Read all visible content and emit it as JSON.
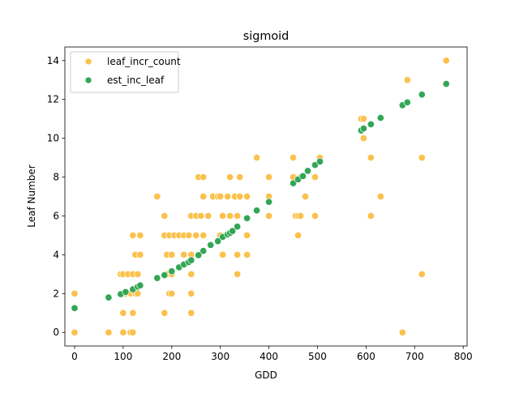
{
  "chart_data": {
    "type": "scatter",
    "title": "sigmoid",
    "xlabel": "GDD",
    "ylabel": "Leaf Number",
    "xlim": [
      -20,
      808
    ],
    "ylim": [
      -0.7,
      14.7
    ],
    "xticks": [
      0,
      100,
      200,
      300,
      400,
      500,
      600,
      700,
      800
    ],
    "yticks": [
      0,
      2,
      4,
      6,
      8,
      10,
      12,
      14
    ],
    "grid": false,
    "legend_position": "top-left",
    "series": [
      {
        "name": "leaf_incr_count",
        "color": "#fbc14c",
        "points": [
          [
            0,
            0
          ],
          [
            0,
            2
          ],
          [
            70,
            0
          ],
          [
            95,
            3
          ],
          [
            100,
            0
          ],
          [
            100,
            1
          ],
          [
            100,
            3
          ],
          [
            105,
            2
          ],
          [
            110,
            3
          ],
          [
            115,
            2
          ],
          [
            115,
            0
          ],
          [
            120,
            5
          ],
          [
            120,
            3
          ],
          [
            120,
            1
          ],
          [
            120,
            0
          ],
          [
            125,
            2
          ],
          [
            125,
            4
          ],
          [
            130,
            3
          ],
          [
            130,
            2
          ],
          [
            135,
            4
          ],
          [
            135,
            5
          ],
          [
            170,
            7
          ],
          [
            185,
            6
          ],
          [
            185,
            1
          ],
          [
            185,
            5
          ],
          [
            190,
            4
          ],
          [
            190,
            3
          ],
          [
            195,
            5
          ],
          [
            195,
            2
          ],
          [
            200,
            3
          ],
          [
            200,
            4
          ],
          [
            200,
            2
          ],
          [
            205,
            5
          ],
          [
            215,
            5
          ],
          [
            225,
            5
          ],
          [
            225,
            4
          ],
          [
            235,
            5
          ],
          [
            240,
            6
          ],
          [
            240,
            4
          ],
          [
            240,
            3
          ],
          [
            240,
            2
          ],
          [
            240,
            1
          ],
          [
            250,
            6
          ],
          [
            250,
            5
          ],
          [
            255,
            8
          ],
          [
            260,
            6
          ],
          [
            265,
            8
          ],
          [
            265,
            5
          ],
          [
            265,
            7
          ],
          [
            275,
            6
          ],
          [
            285,
            7
          ],
          [
            295,
            7
          ],
          [
            300,
            7
          ],
          [
            300,
            5
          ],
          [
            305,
            4
          ],
          [
            305,
            6
          ],
          [
            315,
            7
          ],
          [
            320,
            6
          ],
          [
            320,
            8
          ],
          [
            330,
            7
          ],
          [
            335,
            4
          ],
          [
            335,
            3
          ],
          [
            335,
            6
          ],
          [
            340,
            8
          ],
          [
            340,
            7
          ],
          [
            355,
            4
          ],
          [
            355,
            5
          ],
          [
            355,
            7
          ],
          [
            375,
            9
          ],
          [
            400,
            6
          ],
          [
            400,
            8
          ],
          [
            400,
            7
          ],
          [
            450,
            9
          ],
          [
            450,
            8
          ],
          [
            455,
            6
          ],
          [
            460,
            5
          ],
          [
            460,
            6
          ],
          [
            465,
            8
          ],
          [
            465,
            6
          ],
          [
            475,
            7
          ],
          [
            495,
            8
          ],
          [
            495,
            6
          ],
          [
            505,
            9
          ],
          [
            590,
            11
          ],
          [
            595,
            10
          ],
          [
            595,
            11
          ],
          [
            610,
            9
          ],
          [
            610,
            6
          ],
          [
            630,
            7
          ],
          [
            675,
            0
          ],
          [
            685,
            13
          ],
          [
            715,
            9
          ],
          [
            715,
            3
          ],
          [
            765,
            14
          ]
        ]
      },
      {
        "name": "est_inc_leaf",
        "color": "#33a655",
        "points": [
          [
            0,
            1.25
          ],
          [
            70,
            1.8
          ],
          [
            95,
            1.97
          ],
          [
            105,
            2.08
          ],
          [
            120,
            2.22
          ],
          [
            130,
            2.35
          ],
          [
            135,
            2.42
          ],
          [
            170,
            2.8
          ],
          [
            185,
            2.95
          ],
          [
            200,
            3.15
          ],
          [
            215,
            3.35
          ],
          [
            225,
            3.5
          ],
          [
            235,
            3.62
          ],
          [
            240,
            3.72
          ],
          [
            255,
            3.98
          ],
          [
            265,
            4.2
          ],
          [
            280,
            4.5
          ],
          [
            295,
            4.7
          ],
          [
            305,
            4.92
          ],
          [
            315,
            5.05
          ],
          [
            320,
            5.12
          ],
          [
            325,
            5.22
          ],
          [
            335,
            5.45
          ],
          [
            355,
            5.88
          ],
          [
            375,
            6.28
          ],
          [
            400,
            6.72
          ],
          [
            450,
            7.68
          ],
          [
            460,
            7.88
          ],
          [
            470,
            8.05
          ],
          [
            480,
            8.32
          ],
          [
            495,
            8.62
          ],
          [
            505,
            8.8
          ],
          [
            590,
            10.4
          ],
          [
            595,
            10.5
          ],
          [
            610,
            10.72
          ],
          [
            630,
            11.05
          ],
          [
            675,
            11.7
          ],
          [
            685,
            11.85
          ],
          [
            715,
            12.25
          ],
          [
            765,
            12.8
          ]
        ]
      }
    ]
  }
}
